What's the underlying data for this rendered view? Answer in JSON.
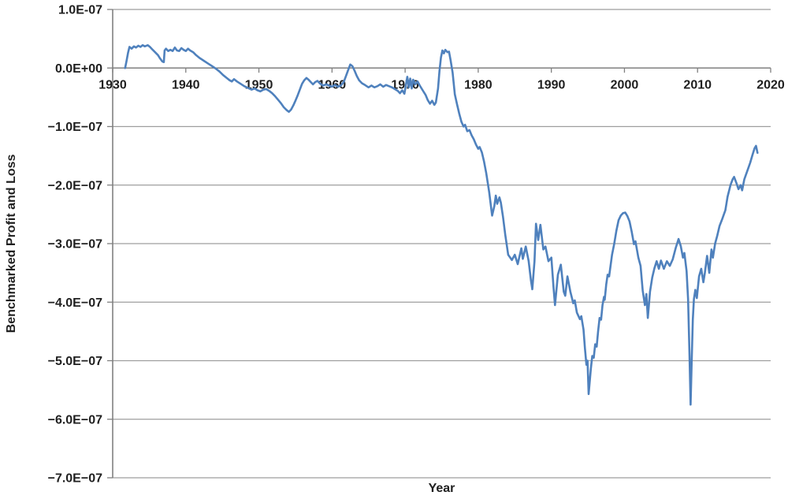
{
  "chart_data": {
    "type": "line",
    "title": "",
    "xlabel": "Year",
    "ylabel": "Benchmarked Profit and Loss",
    "legend": "none",
    "grid": "horizontal",
    "xlim": [
      1930,
      2020
    ],
    "x_ticks": [
      1930,
      1940,
      1950,
      1960,
      1970,
      1980,
      1990,
      2000,
      2010,
      2020
    ],
    "x_tick_labels": [
      "1930",
      "1940",
      "1950",
      "1960",
      "1970",
      "1980",
      "1990",
      "2000",
      "2010",
      "2020"
    ],
    "y_scale_note": "y values are in units of 1E-07",
    "ylim_units": [
      -7,
      1
    ],
    "y_tick_values": [
      1,
      0,
      -1,
      -2,
      -3,
      -4,
      -5,
      -6,
      -7
    ],
    "y_tick_labels": [
      "1.0E-07",
      "0.0E+00",
      "−1.0E−07",
      "−2.0E−07",
      "−3.0E−07",
      "−4.0E−07",
      "−5.0E−07",
      "−6.0E−07",
      "−7.0E−07"
    ],
    "line_color": "#4F81BD",
    "axis_color": "#808080",
    "grid_color": "#9e9e9e",
    "label_color": "#1f1f1f",
    "series": [
      {
        "points": [
          [
            1931.7,
            0.0
          ],
          [
            1931.9,
            0.12
          ],
          [
            1932.1,
            0.26
          ],
          [
            1932.3,
            0.36
          ],
          [
            1932.6,
            0.33
          ],
          [
            1932.9,
            0.37
          ],
          [
            1933.2,
            0.35
          ],
          [
            1933.5,
            0.38
          ],
          [
            1933.8,
            0.36
          ],
          [
            1934.1,
            0.39
          ],
          [
            1934.4,
            0.37
          ],
          [
            1934.8,
            0.39
          ],
          [
            1935.1,
            0.36
          ],
          [
            1935.4,
            0.32
          ],
          [
            1935.8,
            0.27
          ],
          [
            1936.2,
            0.22
          ],
          [
            1936.5,
            0.16
          ],
          [
            1936.8,
            0.11
          ],
          [
            1937.0,
            0.1
          ],
          [
            1937.1,
            0.3
          ],
          [
            1937.3,
            0.33
          ],
          [
            1937.6,
            0.29
          ],
          [
            1937.9,
            0.31
          ],
          [
            1938.2,
            0.29
          ],
          [
            1938.5,
            0.35
          ],
          [
            1938.8,
            0.3
          ],
          [
            1939.1,
            0.29
          ],
          [
            1939.4,
            0.34
          ],
          [
            1939.7,
            0.31
          ],
          [
            1940.0,
            0.29
          ],
          [
            1940.3,
            0.33
          ],
          [
            1940.6,
            0.3
          ],
          [
            1941.0,
            0.27
          ],
          [
            1941.4,
            0.22
          ],
          [
            1941.9,
            0.17
          ],
          [
            1942.4,
            0.13
          ],
          [
            1943.0,
            0.08
          ],
          [
            1943.5,
            0.04
          ],
          [
            1944.1,
            -0.01
          ],
          [
            1944.6,
            -0.06
          ],
          [
            1945.1,
            -0.12
          ],
          [
            1945.6,
            -0.17
          ],
          [
            1946.0,
            -0.21
          ],
          [
            1946.3,
            -0.23
          ],
          [
            1946.6,
            -0.19
          ],
          [
            1947.0,
            -0.23
          ],
          [
            1947.5,
            -0.27
          ],
          [
            1948.0,
            -0.31
          ],
          [
            1948.5,
            -0.34
          ],
          [
            1949.0,
            -0.37
          ],
          [
            1949.4,
            -0.35
          ],
          [
            1949.8,
            -0.38
          ],
          [
            1950.2,
            -0.4
          ],
          [
            1950.6,
            -0.37
          ],
          [
            1951.0,
            -0.36
          ],
          [
            1951.4,
            -0.39
          ],
          [
            1951.8,
            -0.43
          ],
          [
            1952.2,
            -0.48
          ],
          [
            1952.6,
            -0.54
          ],
          [
            1953.0,
            -0.6
          ],
          [
            1953.4,
            -0.67
          ],
          [
            1953.8,
            -0.72
          ],
          [
            1954.1,
            -0.75
          ],
          [
            1954.4,
            -0.71
          ],
          [
            1954.7,
            -0.64
          ],
          [
            1955.0,
            -0.56
          ],
          [
            1955.3,
            -0.47
          ],
          [
            1955.6,
            -0.37
          ],
          [
            1955.9,
            -0.27
          ],
          [
            1956.2,
            -0.21
          ],
          [
            1956.5,
            -0.17
          ],
          [
            1956.8,
            -0.2
          ],
          [
            1957.1,
            -0.24
          ],
          [
            1957.4,
            -0.28
          ],
          [
            1957.7,
            -0.24
          ],
          [
            1958.0,
            -0.22
          ],
          [
            1958.4,
            -0.27
          ],
          [
            1958.8,
            -0.3
          ],
          [
            1959.2,
            -0.28
          ],
          [
            1959.6,
            -0.3
          ],
          [
            1960.0,
            -0.32
          ],
          [
            1960.4,
            -0.29
          ],
          [
            1960.8,
            -0.32
          ],
          [
            1961.2,
            -0.3
          ],
          [
            1961.6,
            -0.24
          ],
          [
            1961.9,
            -0.14
          ],
          [
            1962.2,
            -0.04
          ],
          [
            1962.5,
            0.06
          ],
          [
            1962.8,
            0.03
          ],
          [
            1963.1,
            -0.05
          ],
          [
            1963.4,
            -0.14
          ],
          [
            1963.7,
            -0.21
          ],
          [
            1964.1,
            -0.26
          ],
          [
            1964.5,
            -0.29
          ],
          [
            1965.0,
            -0.33
          ],
          [
            1965.4,
            -0.3
          ],
          [
            1965.8,
            -0.33
          ],
          [
            1966.2,
            -0.31
          ],
          [
            1966.6,
            -0.28
          ],
          [
            1967.0,
            -0.32
          ],
          [
            1967.4,
            -0.29
          ],
          [
            1967.8,
            -0.31
          ],
          [
            1968.2,
            -0.33
          ],
          [
            1968.6,
            -0.36
          ],
          [
            1969.0,
            -0.39
          ],
          [
            1969.3,
            -0.43
          ],
          [
            1969.6,
            -0.38
          ],
          [
            1969.9,
            -0.44
          ],
          [
            1970.1,
            -0.3
          ],
          [
            1970.3,
            -0.15
          ],
          [
            1970.5,
            -0.33
          ],
          [
            1970.7,
            -0.18
          ],
          [
            1970.9,
            -0.35
          ],
          [
            1971.1,
            -0.2
          ],
          [
            1971.4,
            -0.28
          ],
          [
            1971.7,
            -0.23
          ],
          [
            1972.0,
            -0.3
          ],
          [
            1972.4,
            -0.38
          ],
          [
            1972.8,
            -0.46
          ],
          [
            1973.1,
            -0.55
          ],
          [
            1973.4,
            -0.61
          ],
          [
            1973.7,
            -0.56
          ],
          [
            1974.0,
            -0.63
          ],
          [
            1974.2,
            -0.59
          ],
          [
            1974.5,
            -0.35
          ],
          [
            1974.7,
            -0.05
          ],
          [
            1974.9,
            0.18
          ],
          [
            1975.1,
            0.3
          ],
          [
            1975.3,
            0.25
          ],
          [
            1975.5,
            0.31
          ],
          [
            1975.8,
            0.27
          ],
          [
            1976.0,
            0.28
          ],
          [
            1976.2,
            0.15
          ],
          [
            1976.5,
            -0.08
          ],
          [
            1976.8,
            -0.45
          ],
          [
            1977.1,
            -0.62
          ],
          [
            1977.4,
            -0.78
          ],
          [
            1977.7,
            -0.92
          ],
          [
            1978.0,
            -1.0
          ],
          [
            1978.2,
            -0.97
          ],
          [
            1978.5,
            -1.08
          ],
          [
            1978.8,
            -1.06
          ],
          [
            1979.1,
            -1.15
          ],
          [
            1979.4,
            -1.22
          ],
          [
            1979.7,
            -1.31
          ],
          [
            1980.0,
            -1.38
          ],
          [
            1980.2,
            -1.35
          ],
          [
            1980.5,
            -1.44
          ],
          [
            1980.8,
            -1.6
          ],
          [
            1981.1,
            -1.8
          ],
          [
            1981.5,
            -2.12
          ],
          [
            1981.9,
            -2.52
          ],
          [
            1982.2,
            -2.36
          ],
          [
            1982.4,
            -2.18
          ],
          [
            1982.6,
            -2.32
          ],
          [
            1982.9,
            -2.21
          ],
          [
            1983.1,
            -2.3
          ],
          [
            1983.4,
            -2.55
          ],
          [
            1983.7,
            -2.85
          ],
          [
            1984.1,
            -3.19
          ],
          [
            1984.6,
            -3.28
          ],
          [
            1985.0,
            -3.19
          ],
          [
            1985.4,
            -3.35
          ],
          [
            1985.9,
            -3.08
          ],
          [
            1986.1,
            -3.26
          ],
          [
            1986.5,
            -3.05
          ],
          [
            1986.9,
            -3.3
          ],
          [
            1987.2,
            -3.62
          ],
          [
            1987.4,
            -3.78
          ],
          [
            1987.7,
            -3.3
          ],
          [
            1987.9,
            -2.66
          ],
          [
            1988.2,
            -2.94
          ],
          [
            1988.5,
            -2.68
          ],
          [
            1988.9,
            -3.1
          ],
          [
            1989.2,
            -3.05
          ],
          [
            1989.6,
            -3.3
          ],
          [
            1990.0,
            -3.24
          ],
          [
            1990.3,
            -3.74
          ],
          [
            1990.5,
            -4.05
          ],
          [
            1990.9,
            -3.53
          ],
          [
            1991.3,
            -3.36
          ],
          [
            1991.7,
            -3.82
          ],
          [
            1991.9,
            -3.89
          ],
          [
            1992.2,
            -3.56
          ],
          [
            1992.6,
            -3.82
          ],
          [
            1993.0,
            -4.02
          ],
          [
            1993.2,
            -3.97
          ],
          [
            1993.5,
            -4.18
          ],
          [
            1993.9,
            -4.29
          ],
          [
            1994.1,
            -4.24
          ],
          [
            1994.4,
            -4.47
          ],
          [
            1994.6,
            -4.79
          ],
          [
            1994.8,
            -5.07
          ],
          [
            1994.95,
            -5.0
          ],
          [
            1995.1,
            -5.57
          ],
          [
            1995.4,
            -5.14
          ],
          [
            1995.6,
            -4.92
          ],
          [
            1995.8,
            -4.95
          ],
          [
            1996.0,
            -4.72
          ],
          [
            1996.2,
            -4.76
          ],
          [
            1996.4,
            -4.5
          ],
          [
            1996.6,
            -4.27
          ],
          [
            1996.8,
            -4.3
          ],
          [
            1997.0,
            -4.05
          ],
          [
            1997.2,
            -3.91
          ],
          [
            1997.3,
            -3.96
          ],
          [
            1997.5,
            -3.7
          ],
          [
            1997.7,
            -3.53
          ],
          [
            1997.9,
            -3.56
          ],
          [
            1998.1,
            -3.38
          ],
          [
            1998.3,
            -3.19
          ],
          [
            1998.6,
            -3.0
          ],
          [
            1998.9,
            -2.78
          ],
          [
            1999.2,
            -2.6
          ],
          [
            1999.5,
            -2.52
          ],
          [
            1999.8,
            -2.48
          ],
          [
            2000.1,
            -2.47
          ],
          [
            2000.4,
            -2.53
          ],
          [
            2000.7,
            -2.62
          ],
          [
            2001.0,
            -2.8
          ],
          [
            2001.3,
            -3.01
          ],
          [
            2001.5,
            -2.96
          ],
          [
            2001.9,
            -3.24
          ],
          [
            2002.2,
            -3.38
          ],
          [
            2002.5,
            -3.8
          ],
          [
            2002.8,
            -4.05
          ],
          [
            2003.0,
            -3.86
          ],
          [
            2003.2,
            -4.27
          ],
          [
            2003.5,
            -3.82
          ],
          [
            2003.8,
            -3.58
          ],
          [
            2004.1,
            -3.42
          ],
          [
            2004.4,
            -3.3
          ],
          [
            2004.7,
            -3.43
          ],
          [
            2005.0,
            -3.29
          ],
          [
            2005.4,
            -3.43
          ],
          [
            2005.8,
            -3.3
          ],
          [
            2006.2,
            -3.38
          ],
          [
            2006.6,
            -3.27
          ],
          [
            2007.0,
            -3.08
          ],
          [
            2007.4,
            -2.92
          ],
          [
            2007.7,
            -3.04
          ],
          [
            2008.0,
            -3.24
          ],
          [
            2008.2,
            -3.16
          ],
          [
            2008.5,
            -3.47
          ],
          [
            2008.7,
            -3.95
          ],
          [
            2008.9,
            -4.9
          ],
          [
            2009.05,
            -5.75
          ],
          [
            2009.2,
            -5.0
          ],
          [
            2009.35,
            -4.3
          ],
          [
            2009.5,
            -3.95
          ],
          [
            2009.7,
            -3.79
          ],
          [
            2009.9,
            -3.93
          ],
          [
            2010.2,
            -3.56
          ],
          [
            2010.5,
            -3.43
          ],
          [
            2010.8,
            -3.66
          ],
          [
            2011.0,
            -3.5
          ],
          [
            2011.3,
            -3.21
          ],
          [
            2011.6,
            -3.5
          ],
          [
            2011.9,
            -3.1
          ],
          [
            2012.1,
            -3.24
          ],
          [
            2012.4,
            -3.0
          ],
          [
            2012.7,
            -2.86
          ],
          [
            2013.0,
            -2.7
          ],
          [
            2013.4,
            -2.57
          ],
          [
            2013.8,
            -2.43
          ],
          [
            2014.1,
            -2.2
          ],
          [
            2014.5,
            -2.0
          ],
          [
            2014.8,
            -1.9
          ],
          [
            2015.0,
            -1.86
          ],
          [
            2015.3,
            -1.96
          ],
          [
            2015.6,
            -2.07
          ],
          [
            2015.9,
            -2.0
          ],
          [
            2016.1,
            -2.09
          ],
          [
            2016.4,
            -1.9
          ],
          [
            2016.8,
            -1.76
          ],
          [
            2017.2,
            -1.62
          ],
          [
            2017.5,
            -1.49
          ],
          [
            2017.8,
            -1.37
          ],
          [
            2018.0,
            -1.33
          ],
          [
            2018.2,
            -1.45
          ]
        ]
      }
    ]
  }
}
